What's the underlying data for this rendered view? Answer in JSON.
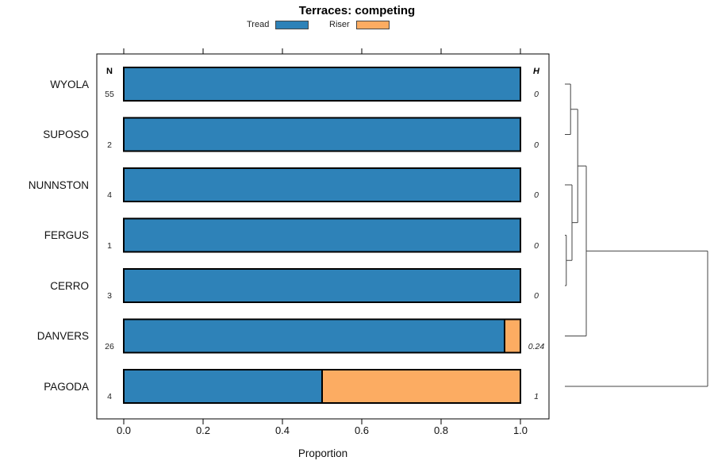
{
  "title": "Terraces: competing",
  "legend": {
    "items": [
      {
        "label": "Tread",
        "color": "#2e82b8"
      },
      {
        "label": "Riser",
        "color": "#fcac62"
      }
    ]
  },
  "axis": {
    "xlabel": "Proportion",
    "xticks": [
      0,
      0.2,
      0.4,
      0.6,
      0.8,
      1.0
    ],
    "xtick_labels": [
      "0.0",
      "0.2",
      "0.4",
      "0.6",
      "0.8",
      "1.0"
    ],
    "xlim": [
      0,
      1
    ]
  },
  "columns": {
    "n_header": "N",
    "h_header": "H"
  },
  "chart_data": {
    "type": "bar",
    "orientation": "horizontal_stacked",
    "title": "Terraces: competing",
    "xlabel": "Proportion",
    "xlim": [
      0,
      1
    ],
    "grid": false,
    "legend_position": "top",
    "categories": [
      "WYOLA",
      "SUPOSO",
      "NUNNSTON",
      "FERGUS",
      "CERRO",
      "DANVERS",
      "PAGODA"
    ],
    "series": [
      {
        "name": "Tread",
        "color": "#2e82b8",
        "values": [
          1,
          1,
          1,
          1,
          1,
          0.96,
          0.5
        ]
      },
      {
        "name": "Riser",
        "color": "#fcac62",
        "values": [
          0,
          0,
          0,
          0,
          0,
          0.04,
          0.5
        ]
      }
    ],
    "n_values": [
      "55",
      "2",
      "4",
      "1",
      "3",
      "26",
      "4"
    ],
    "h_values": [
      "0",
      "0",
      "0",
      "0",
      "0",
      "0.24",
      "1"
    ]
  },
  "dendrogram": {
    "leaves": [
      "WYOLA",
      "SUPOSO",
      "NUNNSTON",
      "FERGUS",
      "CERRO",
      "DANVERS",
      "PAGODA"
    ],
    "merges": [
      {
        "a": -4,
        "b": -5,
        "height": 0.01
      },
      {
        "a": -3,
        "b": 1,
        "height": 0.05
      },
      {
        "a": -1,
        "b": -2,
        "height": 0.04
      },
      {
        "a": 3,
        "b": 2,
        "height": 0.09
      },
      {
        "a": 4,
        "b": -6,
        "height": 0.15
      },
      {
        "a": 5,
        "b": -7,
        "height": 1.0
      }
    ]
  }
}
